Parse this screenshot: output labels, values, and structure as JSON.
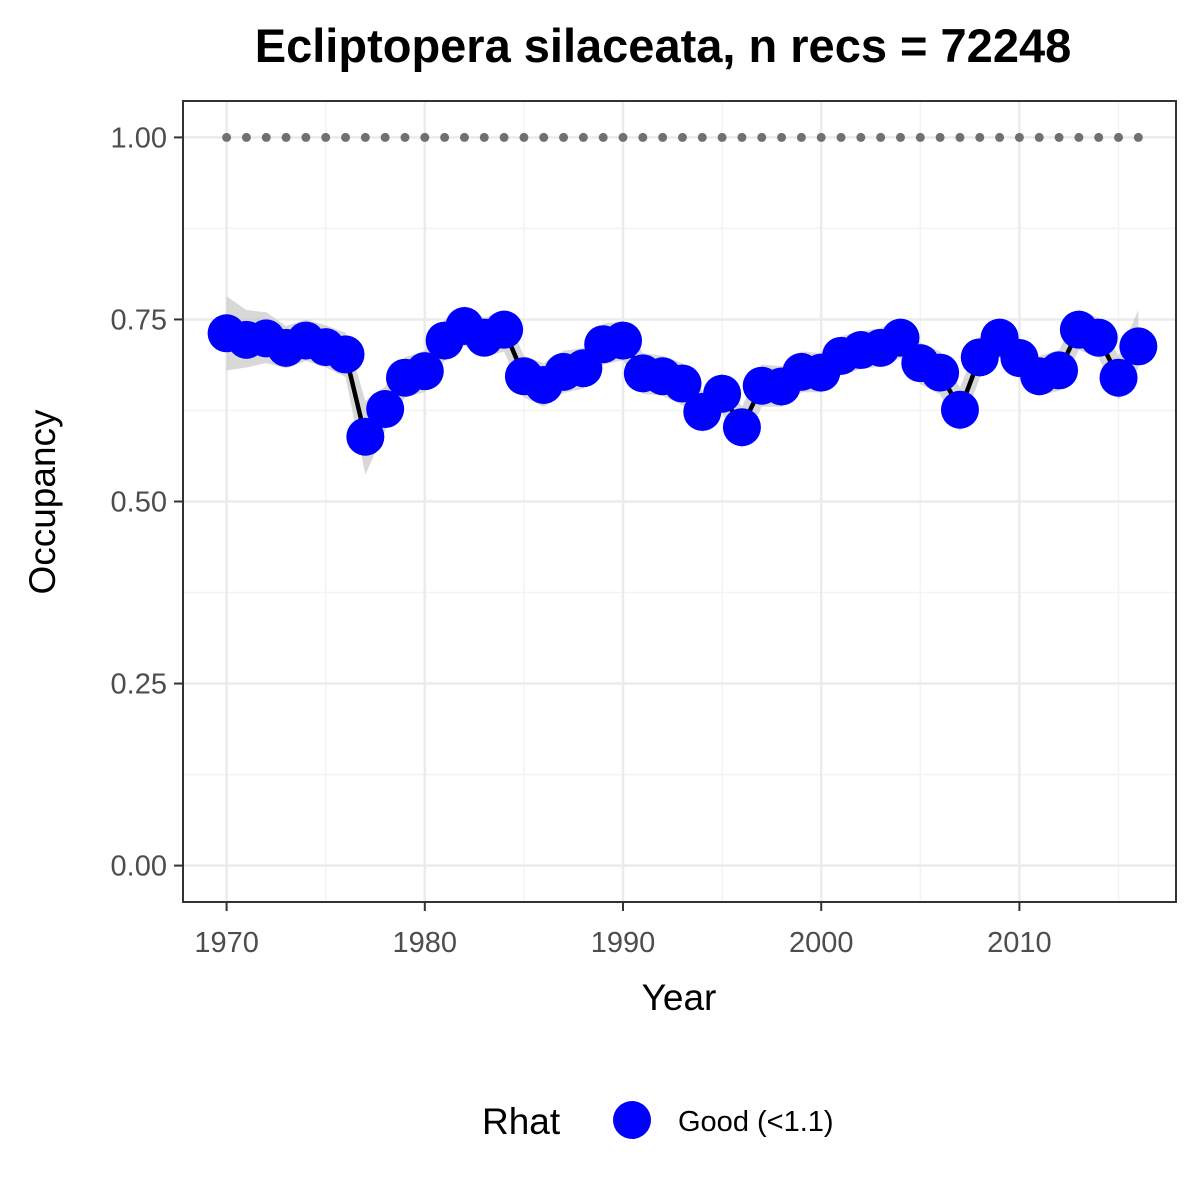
{
  "chart_data": {
    "type": "line",
    "title": "Ecliptopera silaceata, n recs = 72248",
    "xlabel": "Year",
    "ylabel": "Occupancy",
    "xlim": [
      1967.8,
      2017.9
    ],
    "ylim": [
      -0.05,
      1.05
    ],
    "x_ticks": [
      1970,
      1980,
      1990,
      2000,
      2010
    ],
    "x_tick_labels": [
      "1970",
      "1980",
      "1990",
      "2000",
      "2010"
    ],
    "y_ticks": [
      0,
      0.25,
      0.5,
      0.75,
      1.0
    ],
    "y_tick_labels": [
      "0.00",
      "0.25",
      "0.50",
      "0.75",
      "1.00"
    ],
    "grid": true,
    "legend": {
      "position": "bottom",
      "title": "Rhat",
      "entries": [
        {
          "label": "Good (<1.1)",
          "color": "#0000ff"
        }
      ]
    },
    "colors": {
      "points": "#0000ff",
      "line": "#000000",
      "ribbon": "#bebebe",
      "reference": "#707070",
      "grid_major": "#ebebeb",
      "grid_minor": "#f3f3f3",
      "panel_border": "#333333"
    },
    "reference_line": {
      "y": 1.0,
      "style": "dotted"
    },
    "series": [
      {
        "x": [
          1970,
          1971,
          1972,
          1973,
          1974,
          1975,
          1976,
          1977,
          1978,
          1979,
          1980,
          1981,
          1982,
          1983,
          1984,
          1985,
          1986,
          1987,
          1988,
          1989,
          1990,
          1991,
          1992,
          1993,
          1994,
          1995,
          1996,
          1997,
          1998,
          1999,
          2000,
          2001,
          2002,
          2003,
          2004,
          2005,
          2006,
          2007,
          2008,
          2009,
          2010,
          2011,
          2012,
          2013,
          2014,
          2015,
          2016
        ],
        "y": [
          0.731,
          0.722,
          0.724,
          0.711,
          0.721,
          0.712,
          0.702,
          0.589,
          0.627,
          0.67,
          0.679,
          0.721,
          0.741,
          0.725,
          0.736,
          0.672,
          0.66,
          0.678,
          0.683,
          0.716,
          0.721,
          0.676,
          0.672,
          0.662,
          0.623,
          0.648,
          0.602,
          0.659,
          0.658,
          0.678,
          0.677,
          0.7,
          0.708,
          0.711,
          0.725,
          0.69,
          0.677,
          0.626,
          0.698,
          0.725,
          0.697,
          0.672,
          0.68,
          0.736,
          0.725,
          0.67,
          0.713
        ],
        "lower": [
          0.68,
          0.684,
          0.69,
          0.683,
          0.693,
          0.684,
          0.671,
          0.537,
          0.597,
          0.643,
          0.65,
          0.693,
          0.714,
          0.698,
          0.706,
          0.643,
          0.63,
          0.649,
          0.655,
          0.688,
          0.694,
          0.648,
          0.645,
          0.632,
          0.595,
          0.621,
          0.573,
          0.63,
          0.63,
          0.65,
          0.65,
          0.673,
          0.682,
          0.685,
          0.697,
          0.661,
          0.647,
          0.596,
          0.67,
          0.697,
          0.669,
          0.645,
          0.652,
          0.708,
          0.697,
          0.64,
          0.683
        ],
        "upper": [
          0.782,
          0.763,
          0.76,
          0.741,
          0.75,
          0.742,
          0.732,
          0.638,
          0.658,
          0.698,
          0.707,
          0.749,
          0.768,
          0.752,
          0.763,
          0.7,
          0.69,
          0.707,
          0.711,
          0.744,
          0.748,
          0.704,
          0.7,
          0.69,
          0.651,
          0.676,
          0.63,
          0.688,
          0.686,
          0.706,
          0.704,
          0.727,
          0.734,
          0.738,
          0.752,
          0.718,
          0.706,
          0.656,
          0.726,
          0.752,
          0.725,
          0.7,
          0.708,
          0.763,
          0.752,
          0.7,
          0.763
        ]
      }
    ]
  }
}
